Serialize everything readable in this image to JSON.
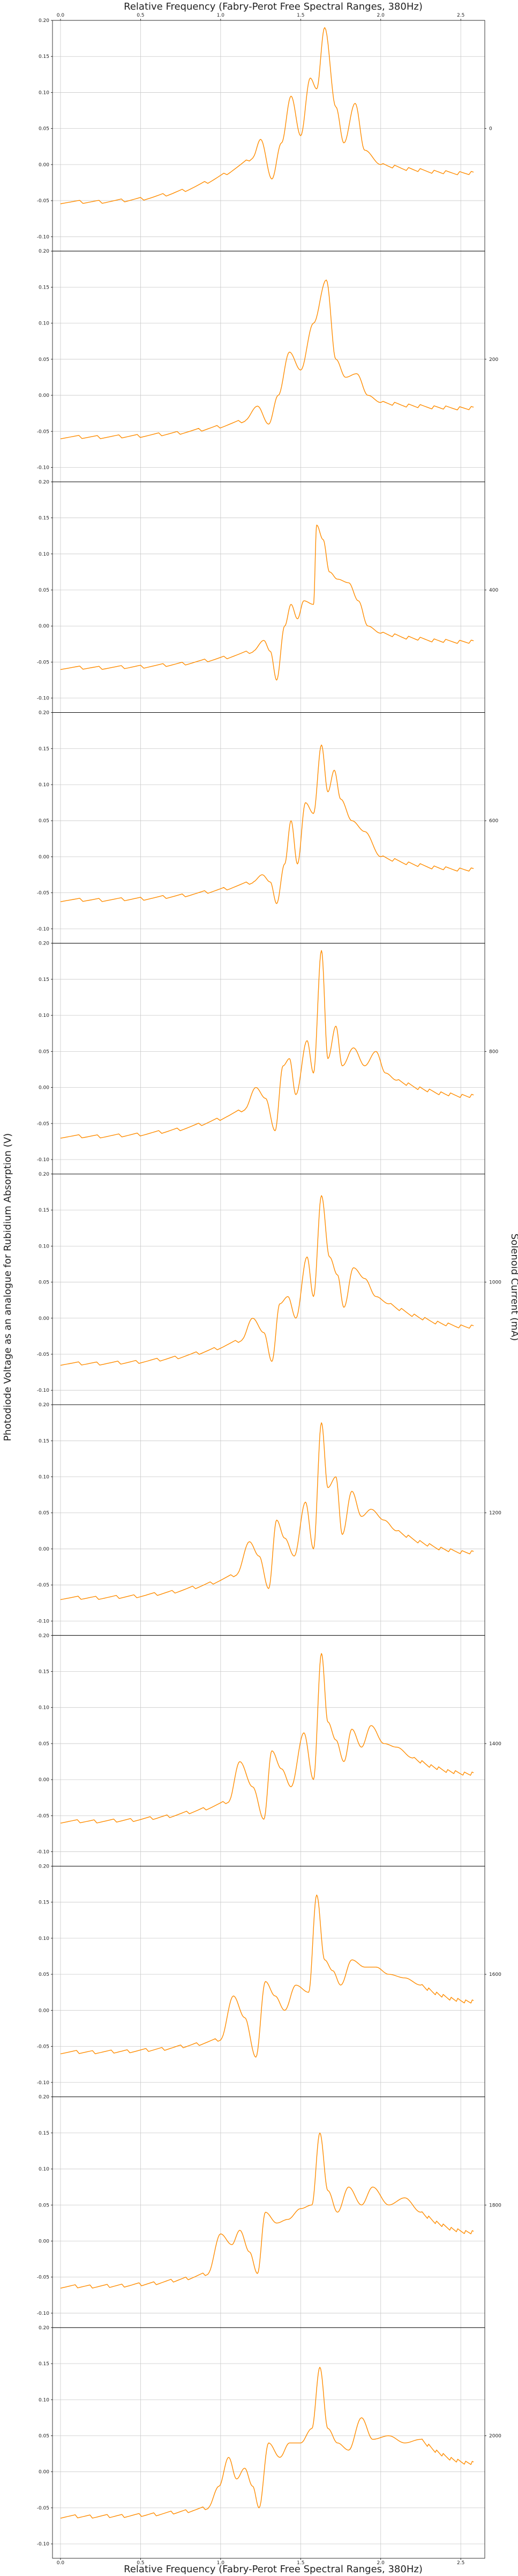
{
  "chart_data": {
    "type": "line",
    "title": "",
    "xlabel": "Relative Frequency (Fabry-Perot Free Spectral Ranges, 380Hz)",
    "ylabel": "Photodiode Voltage as an analogue for Rubidium Absorption (V)",
    "right_label": "Solenoid Current (mA)",
    "xlim": [
      -0.05,
      2.65
    ],
    "ylim": [
      -0.12,
      0.2
    ],
    "x_ticks": [
      "0.0",
      "0.5",
      "1.0",
      "1.5",
      "2.0",
      "2.5"
    ],
    "y_ticks": [
      "0.20",
      "0.15",
      "0.10",
      "0.05",
      "0.00",
      "-0.05",
      "-0.10"
    ],
    "grid": true,
    "line_color": "#ff8c00",
    "series": [
      {
        "current": "0",
        "base": -0.052,
        "end": -0.012,
        "points": [
          [
            1.2,
            0.01
          ],
          [
            1.25,
            0.035
          ],
          [
            1.32,
            -0.02
          ],
          [
            1.38,
            0.03
          ],
          [
            1.44,
            0.095
          ],
          [
            1.5,
            0.04
          ],
          [
            1.56,
            0.12
          ],
          [
            1.6,
            0.105
          ],
          [
            1.65,
            0.19
          ],
          [
            1.72,
            0.08
          ],
          [
            1.77,
            0.03
          ],
          [
            1.84,
            0.085
          ],
          [
            1.9,
            0.02
          ],
          [
            2.0,
            0.0
          ]
        ]
      },
      {
        "current": "200",
        "base": -0.058,
        "end": -0.018,
        "points": [
          [
            1.15,
            -0.035
          ],
          [
            1.23,
            -0.015
          ],
          [
            1.3,
            -0.04
          ],
          [
            1.36,
            0.0
          ],
          [
            1.43,
            0.06
          ],
          [
            1.5,
            0.035
          ],
          [
            1.58,
            0.1
          ],
          [
            1.66,
            0.16
          ],
          [
            1.72,
            0.05
          ],
          [
            1.78,
            0.025
          ],
          [
            1.85,
            0.03
          ],
          [
            1.92,
            0.0
          ],
          [
            2.0,
            -0.01
          ]
        ]
      },
      {
        "current": "400",
        "base": -0.058,
        "end": -0.022,
        "points": [
          [
            1.2,
            -0.035
          ],
          [
            1.27,
            -0.02
          ],
          [
            1.31,
            -0.035
          ],
          [
            1.35,
            -0.075
          ],
          [
            1.4,
            0.0
          ],
          [
            1.44,
            0.03
          ],
          [
            1.48,
            0.01
          ],
          [
            1.52,
            0.035
          ],
          [
            1.58,
            0.03
          ],
          [
            1.6,
            0.14
          ],
          [
            1.64,
            0.12
          ],
          [
            1.68,
            0.075
          ],
          [
            1.73,
            0.065
          ],
          [
            1.8,
            0.06
          ],
          [
            1.86,
            0.035
          ],
          [
            1.92,
            0.0
          ],
          [
            2.0,
            -0.01
          ]
        ]
      },
      {
        "current": "600",
        "base": -0.06,
        "end": -0.018,
        "points": [
          [
            1.2,
            -0.035
          ],
          [
            1.26,
            -0.025
          ],
          [
            1.31,
            -0.035
          ],
          [
            1.35,
            -0.065
          ],
          [
            1.4,
            -0.01
          ],
          [
            1.44,
            0.05
          ],
          [
            1.48,
            -0.01
          ],
          [
            1.53,
            0.075
          ],
          [
            1.58,
            0.06
          ],
          [
            1.63,
            0.155
          ],
          [
            1.67,
            0.09
          ],
          [
            1.71,
            0.12
          ],
          [
            1.75,
            0.08
          ],
          [
            1.82,
            0.05
          ],
          [
            1.9,
            0.035
          ],
          [
            2.0,
            0.0
          ]
        ]
      },
      {
        "current": "800",
        "base": -0.068,
        "end": -0.012,
        "points": [
          [
            1.15,
            -0.03
          ],
          [
            1.22,
            0.0
          ],
          [
            1.28,
            -0.015
          ],
          [
            1.34,
            -0.06
          ],
          [
            1.39,
            0.03
          ],
          [
            1.43,
            0.04
          ],
          [
            1.47,
            -0.01
          ],
          [
            1.54,
            0.065
          ],
          [
            1.58,
            0.02
          ],
          [
            1.63,
            0.19
          ],
          [
            1.67,
            0.04
          ],
          [
            1.72,
            0.085
          ],
          [
            1.76,
            0.03
          ],
          [
            1.83,
            0.055
          ],
          [
            1.9,
            0.03
          ],
          [
            1.97,
            0.05
          ],
          [
            2.03,
            0.02
          ],
          [
            2.1,
            0.01
          ]
        ]
      },
      {
        "current": "1000",
        "base": -0.063,
        "end": -0.012,
        "points": [
          [
            1.13,
            -0.03
          ],
          [
            1.2,
            0.0
          ],
          [
            1.27,
            -0.02
          ],
          [
            1.32,
            -0.06
          ],
          [
            1.37,
            0.02
          ],
          [
            1.42,
            0.03
          ],
          [
            1.47,
            0.0
          ],
          [
            1.54,
            0.085
          ],
          [
            1.58,
            0.03
          ],
          [
            1.63,
            0.17
          ],
          [
            1.68,
            0.085
          ],
          [
            1.73,
            0.06
          ],
          [
            1.77,
            0.015
          ],
          [
            1.83,
            0.07
          ],
          [
            1.9,
            0.055
          ],
          [
            1.97,
            0.03
          ],
          [
            2.05,
            0.02
          ]
        ]
      },
      {
        "current": "1200",
        "base": -0.068,
        "end": -0.005,
        "points": [
          [
            1.1,
            -0.035
          ],
          [
            1.18,
            0.01
          ],
          [
            1.24,
            -0.01
          ],
          [
            1.3,
            -0.055
          ],
          [
            1.35,
            0.04
          ],
          [
            1.4,
            0.015
          ],
          [
            1.46,
            -0.01
          ],
          [
            1.53,
            0.065
          ],
          [
            1.58,
            0.0
          ],
          [
            1.63,
            0.175
          ],
          [
            1.67,
            0.085
          ],
          [
            1.72,
            0.1
          ],
          [
            1.76,
            0.02
          ],
          [
            1.82,
            0.08
          ],
          [
            1.88,
            0.045
          ],
          [
            1.94,
            0.055
          ],
          [
            2.02,
            0.04
          ],
          [
            2.1,
            0.025
          ]
        ]
      },
      {
        "current": "1400",
        "base": -0.058,
        "end": 0.008,
        "points": [
          [
            1.05,
            -0.03
          ],
          [
            1.12,
            0.025
          ],
          [
            1.2,
            -0.01
          ],
          [
            1.27,
            -0.055
          ],
          [
            1.32,
            0.04
          ],
          [
            1.38,
            0.015
          ],
          [
            1.44,
            -0.01
          ],
          [
            1.52,
            0.065
          ],
          [
            1.58,
            0.0
          ],
          [
            1.63,
            0.175
          ],
          [
            1.67,
            0.08
          ],
          [
            1.72,
            0.055
          ],
          [
            1.77,
            0.025
          ],
          [
            1.82,
            0.07
          ],
          [
            1.88,
            0.045
          ],
          [
            1.94,
            0.075
          ],
          [
            2.02,
            0.05
          ],
          [
            2.1,
            0.045
          ],
          [
            2.2,
            0.03
          ]
        ]
      },
      {
        "current": "1600",
        "base": -0.058,
        "end": 0.012,
        "points": [
          [
            1.0,
            -0.04
          ],
          [
            1.08,
            0.02
          ],
          [
            1.15,
            -0.01
          ],
          [
            1.22,
            -0.065
          ],
          [
            1.28,
            0.04
          ],
          [
            1.34,
            0.02
          ],
          [
            1.4,
            0.0
          ],
          [
            1.47,
            0.035
          ],
          [
            1.55,
            0.025
          ],
          [
            1.6,
            0.16
          ],
          [
            1.65,
            0.07
          ],
          [
            1.7,
            0.055
          ],
          [
            1.75,
            0.035
          ],
          [
            1.82,
            0.07
          ],
          [
            1.9,
            0.06
          ],
          [
            1.97,
            0.06
          ],
          [
            2.05,
            0.05
          ],
          [
            2.15,
            0.045
          ],
          [
            2.25,
            0.035
          ]
        ]
      },
      {
        "current": "1800",
        "base": -0.063,
        "end": 0.012,
        "points": [
          [
            0.92,
            -0.045
          ],
          [
            1.0,
            0.01
          ],
          [
            1.07,
            -0.005
          ],
          [
            1.12,
            0.015
          ],
          [
            1.18,
            -0.015
          ],
          [
            1.23,
            -0.045
          ],
          [
            1.28,
            0.04
          ],
          [
            1.35,
            0.025
          ],
          [
            1.42,
            0.03
          ],
          [
            1.5,
            0.045
          ],
          [
            1.57,
            0.05
          ],
          [
            1.62,
            0.15
          ],
          [
            1.67,
            0.07
          ],
          [
            1.73,
            0.04
          ],
          [
            1.8,
            0.075
          ],
          [
            1.88,
            0.05
          ],
          [
            1.95,
            0.075
          ],
          [
            2.05,
            0.05
          ],
          [
            2.15,
            0.06
          ],
          [
            2.25,
            0.04
          ]
        ]
      },
      {
        "current": "2000",
        "base": -0.062,
        "end": 0.012,
        "points": [
          [
            0.92,
            -0.05
          ],
          [
            0.99,
            -0.02
          ],
          [
            1.05,
            0.02
          ],
          [
            1.1,
            -0.01
          ],
          [
            1.15,
            0.005
          ],
          [
            1.2,
            -0.02
          ],
          [
            1.24,
            -0.05
          ],
          [
            1.3,
            0.04
          ],
          [
            1.37,
            0.02
          ],
          [
            1.43,
            0.04
          ],
          [
            1.5,
            0.04
          ],
          [
            1.57,
            0.06
          ],
          [
            1.62,
            0.145
          ],
          [
            1.67,
            0.06
          ],
          [
            1.73,
            0.04
          ],
          [
            1.8,
            0.03
          ],
          [
            1.88,
            0.075
          ],
          [
            1.95,
            0.045
          ],
          [
            2.05,
            0.05
          ],
          [
            2.15,
            0.04
          ],
          [
            2.25,
            0.045
          ]
        ]
      }
    ]
  }
}
